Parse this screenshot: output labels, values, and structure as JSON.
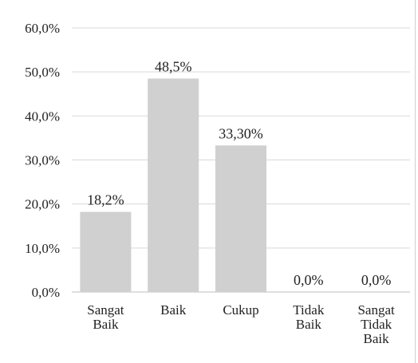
{
  "chart_data": {
    "type": "bar",
    "title": "",
    "xlabel": "",
    "ylabel": "",
    "categories": [
      [
        "Sangat",
        "Baik"
      ],
      [
        "Baik"
      ],
      [
        "Cukup"
      ],
      [
        "Tidak",
        "Baik"
      ],
      [
        "Sangat",
        "Tidak",
        "Baik"
      ]
    ],
    "values": [
      18.2,
      48.5,
      33.3,
      0.0,
      0.0
    ],
    "data_labels": [
      "18,2%",
      "48,5%",
      "33,30%",
      "0,0%",
      "0,0%"
    ],
    "ylim": [
      0,
      60
    ],
    "yticks": [
      0,
      10,
      20,
      30,
      40,
      50,
      60
    ],
    "ytick_labels": [
      "0,0%",
      "10,0%",
      "20,0%",
      "30,0%",
      "40,0%",
      "50,0%",
      "60,0%"
    ],
    "grid": true,
    "legend": "none",
    "colors": {
      "bar": "#d0d0d0",
      "grid": "#d9d9d9",
      "text": "#222222"
    }
  }
}
